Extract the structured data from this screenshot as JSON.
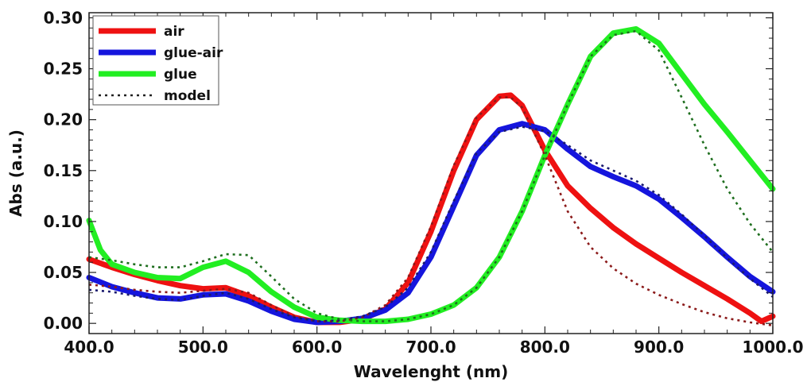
{
  "chart_data": {
    "type": "line",
    "title": "",
    "xlabel": "Wavelenght (nm)",
    "ylabel": "Abs (a.u.)",
    "xlim": [
      400,
      1000
    ],
    "ylim": [
      -0.01,
      0.305
    ],
    "x_ticks": [
      400,
      500,
      600,
      700,
      800,
      900,
      1000
    ],
    "x_tick_labels": [
      "400.0",
      "500.0",
      "600.0",
      "700.0",
      "800.0",
      "900.0",
      "1000.0"
    ],
    "y_ticks": [
      0.0,
      0.05,
      0.1,
      0.15,
      0.2,
      0.25,
      0.3
    ],
    "y_tick_labels": [
      "0.00",
      "0.05",
      "0.10",
      "0.15",
      "0.20",
      "0.25",
      "0.30"
    ],
    "grid": false,
    "legend_position": "top-left",
    "legend": [
      {
        "label": "air",
        "color": "#ee1111",
        "style": "solid"
      },
      {
        "label": "glue-air",
        "color": "#1515dd",
        "style": "solid"
      },
      {
        "label": "glue",
        "color": "#22ee22",
        "style": "solid"
      },
      {
        "label": "model",
        "color": "#222222",
        "style": "dotted"
      }
    ],
    "series": [
      {
        "name": "air",
        "color": "#ee1111",
        "style": "solid",
        "x": [
          400,
          420,
          440,
          460,
          480,
          500,
          520,
          540,
          560,
          580,
          600,
          620,
          640,
          660,
          680,
          700,
          720,
          740,
          760,
          770,
          780,
          800,
          820,
          840,
          860,
          880,
          900,
          920,
          940,
          960,
          980,
          990,
          1000
        ],
        "y": [
          0.063,
          0.055,
          0.048,
          0.042,
          0.037,
          0.034,
          0.035,
          0.027,
          0.016,
          0.006,
          0.001,
          0.001,
          0.004,
          0.014,
          0.04,
          0.09,
          0.15,
          0.2,
          0.223,
          0.224,
          0.214,
          0.17,
          0.135,
          0.113,
          0.094,
          0.078,
          0.064,
          0.05,
          0.037,
          0.024,
          0.01,
          0.002,
          0.007
        ]
      },
      {
        "name": "glue-air",
        "color": "#1515dd",
        "style": "solid",
        "x": [
          400,
          420,
          440,
          460,
          480,
          500,
          520,
          540,
          560,
          580,
          600,
          620,
          640,
          660,
          680,
          700,
          720,
          740,
          760,
          780,
          800,
          820,
          840,
          860,
          880,
          900,
          920,
          940,
          960,
          980,
          1000
        ],
        "y": [
          0.045,
          0.036,
          0.03,
          0.025,
          0.024,
          0.028,
          0.029,
          0.022,
          0.012,
          0.004,
          0.001,
          0.002,
          0.005,
          0.013,
          0.03,
          0.065,
          0.115,
          0.165,
          0.19,
          0.196,
          0.19,
          0.171,
          0.154,
          0.144,
          0.135,
          0.122,
          0.104,
          0.085,
          0.065,
          0.046,
          0.031
        ]
      },
      {
        "name": "glue",
        "color": "#22ee22",
        "style": "solid",
        "x": [
          400,
          410,
          420,
          440,
          460,
          480,
          500,
          520,
          540,
          560,
          580,
          600,
          620,
          640,
          660,
          680,
          700,
          720,
          740,
          760,
          780,
          800,
          820,
          840,
          860,
          880,
          900,
          920,
          940,
          960,
          980,
          1000
        ],
        "y": [
          0.101,
          0.072,
          0.058,
          0.05,
          0.045,
          0.044,
          0.055,
          0.061,
          0.05,
          0.031,
          0.016,
          0.006,
          0.003,
          0.002,
          0.002,
          0.004,
          0.009,
          0.018,
          0.035,
          0.065,
          0.11,
          0.165,
          0.215,
          0.262,
          0.285,
          0.289,
          0.275,
          0.245,
          0.215,
          0.188,
          0.16,
          0.132
        ]
      },
      {
        "name": "air-model",
        "color": "#8b1a1a",
        "style": "dotted",
        "x": [
          400,
          420,
          440,
          460,
          480,
          500,
          520,
          540,
          560,
          580,
          600,
          620,
          640,
          660,
          680,
          700,
          720,
          740,
          760,
          770,
          780,
          800,
          820,
          840,
          860,
          880,
          900,
          920,
          940,
          960,
          980,
          1000
        ],
        "y": [
          0.038,
          0.036,
          0.033,
          0.031,
          0.03,
          0.032,
          0.034,
          0.03,
          0.018,
          0.007,
          0.002,
          0.002,
          0.006,
          0.018,
          0.045,
          0.095,
          0.155,
          0.202,
          0.222,
          0.222,
          0.212,
          0.165,
          0.11,
          0.075,
          0.054,
          0.039,
          0.028,
          0.019,
          0.011,
          0.005,
          0.001,
          -0.002
        ]
      },
      {
        "name": "glue-air-model",
        "color": "#1a1a6e",
        "style": "dotted",
        "x": [
          400,
          420,
          440,
          460,
          480,
          500,
          520,
          540,
          560,
          580,
          600,
          620,
          640,
          660,
          680,
          700,
          720,
          740,
          760,
          780,
          800,
          820,
          840,
          860,
          880,
          900,
          920,
          940,
          960,
          980,
          1000
        ],
        "y": [
          0.033,
          0.031,
          0.027,
          0.024,
          0.023,
          0.027,
          0.03,
          0.024,
          0.014,
          0.006,
          0.002,
          0.003,
          0.007,
          0.016,
          0.035,
          0.07,
          0.12,
          0.167,
          0.188,
          0.193,
          0.189,
          0.175,
          0.16,
          0.15,
          0.14,
          0.126,
          0.107,
          0.086,
          0.064,
          0.044,
          0.026
        ]
      },
      {
        "name": "glue-model",
        "color": "#1e6e1e",
        "style": "dotted",
        "x": [
          400,
          420,
          440,
          460,
          480,
          500,
          520,
          540,
          560,
          580,
          600,
          620,
          640,
          660,
          680,
          700,
          720,
          740,
          760,
          780,
          800,
          820,
          840,
          860,
          880,
          900,
          920,
          940,
          960,
          980,
          1000
        ],
        "y": [
          0.065,
          0.062,
          0.058,
          0.055,
          0.055,
          0.061,
          0.068,
          0.067,
          0.046,
          0.024,
          0.01,
          0.004,
          0.002,
          0.002,
          0.004,
          0.009,
          0.018,
          0.035,
          0.065,
          0.11,
          0.165,
          0.215,
          0.262,
          0.283,
          0.287,
          0.268,
          0.222,
          0.175,
          0.132,
          0.098,
          0.07
        ]
      }
    ]
  }
}
